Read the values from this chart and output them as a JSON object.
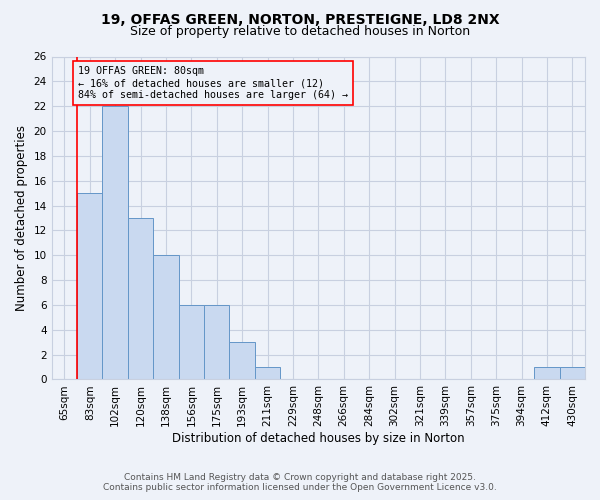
{
  "title": "19, OFFAS GREEN, NORTON, PRESTEIGNE, LD8 2NX",
  "subtitle": "Size of property relative to detached houses in Norton",
  "xlabel": "Distribution of detached houses by size in Norton",
  "ylabel": "Number of detached properties",
  "categories": [
    "65sqm",
    "83sqm",
    "102sqm",
    "120sqm",
    "138sqm",
    "156sqm",
    "175sqm",
    "193sqm",
    "211sqm",
    "229sqm",
    "248sqm",
    "266sqm",
    "284sqm",
    "302sqm",
    "321sqm",
    "339sqm",
    "357sqm",
    "375sqm",
    "394sqm",
    "412sqm",
    "430sqm"
  ],
  "values": [
    0,
    15,
    22,
    13,
    10,
    6,
    6,
    3,
    1,
    0,
    0,
    0,
    0,
    0,
    0,
    0,
    0,
    0,
    0,
    1,
    1
  ],
  "bar_color": "#c9d9f0",
  "bar_edge_color": "#6496c8",
  "red_line_x": 0.5,
  "ylim": [
    0,
    26
  ],
  "yticks": [
    0,
    2,
    4,
    6,
    8,
    10,
    12,
    14,
    16,
    18,
    20,
    22,
    24,
    26
  ],
  "annotation_title": "19 OFFAS GREEN: 80sqm",
  "annotation_line1": "← 16% of detached houses are smaller (12)",
  "annotation_line2": "84% of semi-detached houses are larger (64) →",
  "footer1": "Contains HM Land Registry data © Crown copyright and database right 2025.",
  "footer2": "Contains public sector information licensed under the Open Government Licence v3.0.",
  "bg_color": "#eef2f9",
  "grid_color": "#c8d0e0",
  "title_fontsize": 10,
  "subtitle_fontsize": 9,
  "axis_label_fontsize": 8.5,
  "tick_fontsize": 7.5,
  "footer_fontsize": 6.5
}
